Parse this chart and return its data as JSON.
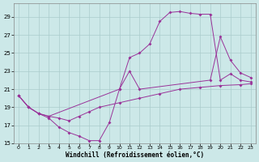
{
  "background_color": "#cce8e8",
  "grid_color": "#aacccc",
  "line_color": "#993399",
  "xlabel": "Windchill (Refroidissement éolien,°C)",
  "xlim": [
    -0.5,
    23.5
  ],
  "ylim": [
    15,
    30.5
  ],
  "yticks": [
    15,
    17,
    19,
    21,
    23,
    25,
    27,
    29
  ],
  "xticks": [
    0,
    1,
    2,
    3,
    4,
    5,
    6,
    7,
    8,
    9,
    10,
    11,
    12,
    13,
    14,
    15,
    16,
    17,
    18,
    19,
    20,
    21,
    22,
    23
  ],
  "line1_x": [
    0,
    1,
    2,
    3,
    4,
    5,
    6,
    7,
    8,
    9,
    10,
    11,
    12,
    19,
    20,
    21,
    22,
    23
  ],
  "line1_y": [
    20.3,
    19.0,
    18.3,
    17.8,
    16.8,
    16.2,
    15.8,
    15.3,
    15.3,
    17.3,
    21.0,
    23.0,
    21.0,
    22.0,
    26.8,
    24.2,
    22.8,
    22.3
  ],
  "line2_x": [
    0,
    1,
    2,
    3,
    10,
    11,
    12,
    13,
    14,
    15,
    16,
    17,
    18,
    19,
    20,
    21,
    22,
    23
  ],
  "line2_y": [
    20.3,
    19.0,
    18.3,
    18.0,
    21.0,
    24.5,
    25.0,
    26.0,
    28.5,
    29.5,
    29.6,
    29.4,
    29.3,
    29.3,
    22.0,
    22.7,
    22.0,
    21.8
  ],
  "line3_x": [
    0,
    1,
    2,
    3,
    4,
    5,
    6,
    7,
    8,
    10,
    12,
    14,
    16,
    18,
    20,
    22,
    23
  ],
  "line3_y": [
    20.3,
    19.0,
    18.3,
    18.0,
    17.8,
    17.5,
    18.0,
    18.5,
    19.0,
    19.5,
    20.0,
    20.5,
    21.0,
    21.2,
    21.4,
    21.5,
    21.6
  ]
}
